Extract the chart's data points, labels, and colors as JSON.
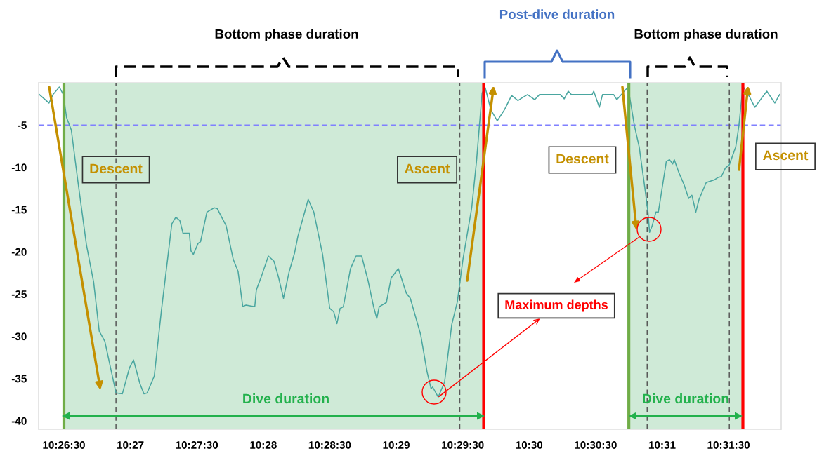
{
  "chart_data": {
    "type": "line",
    "x": [
      10.4386,
      10.4398,
      10.4403,
      10.4411,
      10.4416,
      10.442,
      10.4426,
      10.4434,
      10.4445,
      10.4454,
      10.4461,
      10.4468,
      10.4482,
      10.449,
      10.4499,
      10.4504,
      10.4512,
      10.4517,
      10.4521,
      10.453,
      10.4539,
      10.4552,
      10.4557,
      10.4562,
      10.4566,
      10.4574,
      10.4576,
      10.4579,
      10.4585,
      10.4588,
      10.4596,
      10.4605,
      10.4609,
      10.462,
      10.4629,
      10.4635,
      10.4641,
      10.4645,
      10.4656,
      10.4658,
      10.4664,
      10.4673,
      10.468,
      10.4686,
      10.4692,
      10.4699,
      10.4706,
      10.471,
      10.4723,
      10.473,
      10.4741,
      10.475,
      10.4755,
      10.4759,
      10.4763,
      10.4767,
      10.4776,
      10.4783,
      10.479,
      10.4798,
      10.4805,
      10.4809,
      10.4812,
      10.4821,
      10.4827,
      10.4836,
      10.4846,
      10.4851,
      10.4864,
      10.4872,
      10.4877,
      10.4879,
      10.4886,
      10.4894,
      10.4903,
      10.491,
      10.4917,
      10.4928,
      10.4934,
      10.4941,
      10.4945,
      10.4952,
      10.496,
      10.4969,
      10.4978,
      10.4986,
      10.4991,
      10.4998,
      10.5007,
      10.5013,
      10.5039,
      10.5044,
      10.5049,
      10.5053,
      10.5079,
      10.5081,
      10.5088,
      10.5092,
      10.5106,
      10.511,
      10.5124,
      10.5132,
      10.5138,
      10.5145,
      10.5149,
      10.5151,
      10.5154,
      10.5159,
      10.5162,
      10.5172,
      10.5176,
      10.518,
      10.5182,
      10.5188,
      10.5194,
      10.52,
      10.5204,
      10.5209,
      10.5213,
      10.5222,
      10.5232,
      10.5237,
      10.5241,
      10.5246,
      10.5251,
      10.5259,
      10.5263,
      10.5268,
      10.5276,
      10.5283,
      10.529,
      10.5298,
      10.5308,
      10.5314
    ],
    "series": [
      {
        "color": "#4aa6a0",
        "values": [
          -1.4,
          -2.4,
          -1.4,
          -0.5,
          -1.4,
          -4.1,
          -5.6,
          -11.5,
          -19.2,
          -23.6,
          -29.4,
          -30.6,
          -36.7,
          -36.8,
          -33.7,
          -32.8,
          -35.6,
          -36.8,
          -36.7,
          -34.7,
          -26.9,
          -16.7,
          -15.9,
          -16.3,
          -17.8,
          -17.8,
          -19.9,
          -20.3,
          -19.0,
          -18.8,
          -15.3,
          -14.8,
          -14.9,
          -16.9,
          -20.9,
          -22.3,
          -26.5,
          -26.3,
          -26.5,
          -24.5,
          -23.0,
          -20.5,
          -21.1,
          -23.1,
          -25.5,
          -22.4,
          -20.1,
          -18.2,
          -13.8,
          -15.3,
          -20.3,
          -26.7,
          -27.1,
          -28.5,
          -26.7,
          -26.5,
          -22.0,
          -20.5,
          -20.5,
          -23.4,
          -26.5,
          -27.9,
          -26.5,
          -26.0,
          -23.1,
          -22.0,
          -24.9,
          -25.5,
          -29.8,
          -34.2,
          -36.2,
          -36.0,
          -37.2,
          -35.4,
          -28.6,
          -25.9,
          -20.9,
          -14.8,
          -9.3,
          -1.2,
          -0.6,
          -3.2,
          -4.5,
          -3.2,
          -1.5,
          -2.1,
          -1.8,
          -1.4,
          -2.0,
          -1.4,
          -1.4,
          -1.9,
          -1.0,
          -1.4,
          -1.4,
          -1.0,
          -2.9,
          -1.4,
          -1.4,
          -2.0,
          -0.5,
          -5.1,
          -7.6,
          -12.4,
          -15.3,
          -17.7,
          -17.0,
          -15.3,
          -15.3,
          -9.3,
          -9.1,
          -9.6,
          -9.1,
          -10.7,
          -12.0,
          -13.7,
          -13.3,
          -15.3,
          -13.8,
          -11.8,
          -11.5,
          -11.2,
          -11.1,
          -10.1,
          -9.7,
          -7.6,
          -5.1,
          -0.4,
          -1.6,
          -2.9,
          -2.0,
          -1.0,
          -2.4,
          -1.4
        ]
      }
    ],
    "xlim": [
      10.4385,
      10.5316
    ],
    "xticks": [
      {
        "value": 10.441667,
        "label": "10:26:30"
      },
      {
        "value": 10.45,
        "label": "10:27"
      },
      {
        "value": 10.458333,
        "label": "10:27:30"
      },
      {
        "value": 10.466667,
        "label": "10:28"
      },
      {
        "value": 10.475,
        "label": "10:28:30"
      },
      {
        "value": 10.483333,
        "label": "10:29"
      },
      {
        "value": 10.491667,
        "label": "10:29:30"
      },
      {
        "value": 10.5,
        "label": "10:30"
      },
      {
        "value": 10.508333,
        "label": "10:30:30"
      },
      {
        "value": 10.516667,
        "label": "10:31"
      },
      {
        "value": 10.525,
        "label": "10:31:30"
      }
    ],
    "ylim": [
      -41,
      0
    ],
    "yticks": [
      -40,
      -35,
      -30,
      -25,
      -20,
      -15,
      -10,
      -5
    ],
    "marker": "none",
    "line_style": "solid",
    "grid": false,
    "legend": false,
    "bands": [
      {
        "axis": "x",
        "from": 10.44167,
        "to": 10.4943,
        "color": "#cfead7"
      },
      {
        "axis": "x",
        "from": 10.5125,
        "to": 10.5268,
        "color": "#cfead7"
      }
    ],
    "ref_lines": [
      {
        "axis": "y",
        "value": -5,
        "color": "#8080ff",
        "line_style": "dashed"
      },
      {
        "axis": "x",
        "value": 10.44167,
        "color": "#70ad47",
        "line_style": "solid"
      },
      {
        "axis": "x",
        "value": 10.4482,
        "color": "#595959",
        "line_style": "dashed"
      },
      {
        "axis": "x",
        "value": 10.4913,
        "color": "#595959",
        "line_style": "dashed"
      },
      {
        "axis": "x",
        "value": 10.4943,
        "color": "#ff0000",
        "line_style": "solid"
      },
      {
        "axis": "x",
        "value": 10.5125,
        "color": "#70ad47",
        "line_style": "solid"
      },
      {
        "axis": "x",
        "value": 10.5148,
        "color": "#595959",
        "line_style": "dashed"
      },
      {
        "axis": "x",
        "value": 10.5251,
        "color": "#595959",
        "line_style": "dashed"
      },
      {
        "axis": "x",
        "value": 10.5268,
        "color": "#ff0000",
        "line_style": "solid"
      }
    ],
    "annotations": [
      "Bottom phase duration",
      "Post-dive duration",
      "Bottom phase duration",
      "Descent",
      "Ascent",
      "Descent",
      "Ascent",
      {
        "text": "Maximum depths",
        "x": 10.4886,
        "y": -37.2
      },
      "Dive duration",
      "Dive duration"
    ]
  }
}
